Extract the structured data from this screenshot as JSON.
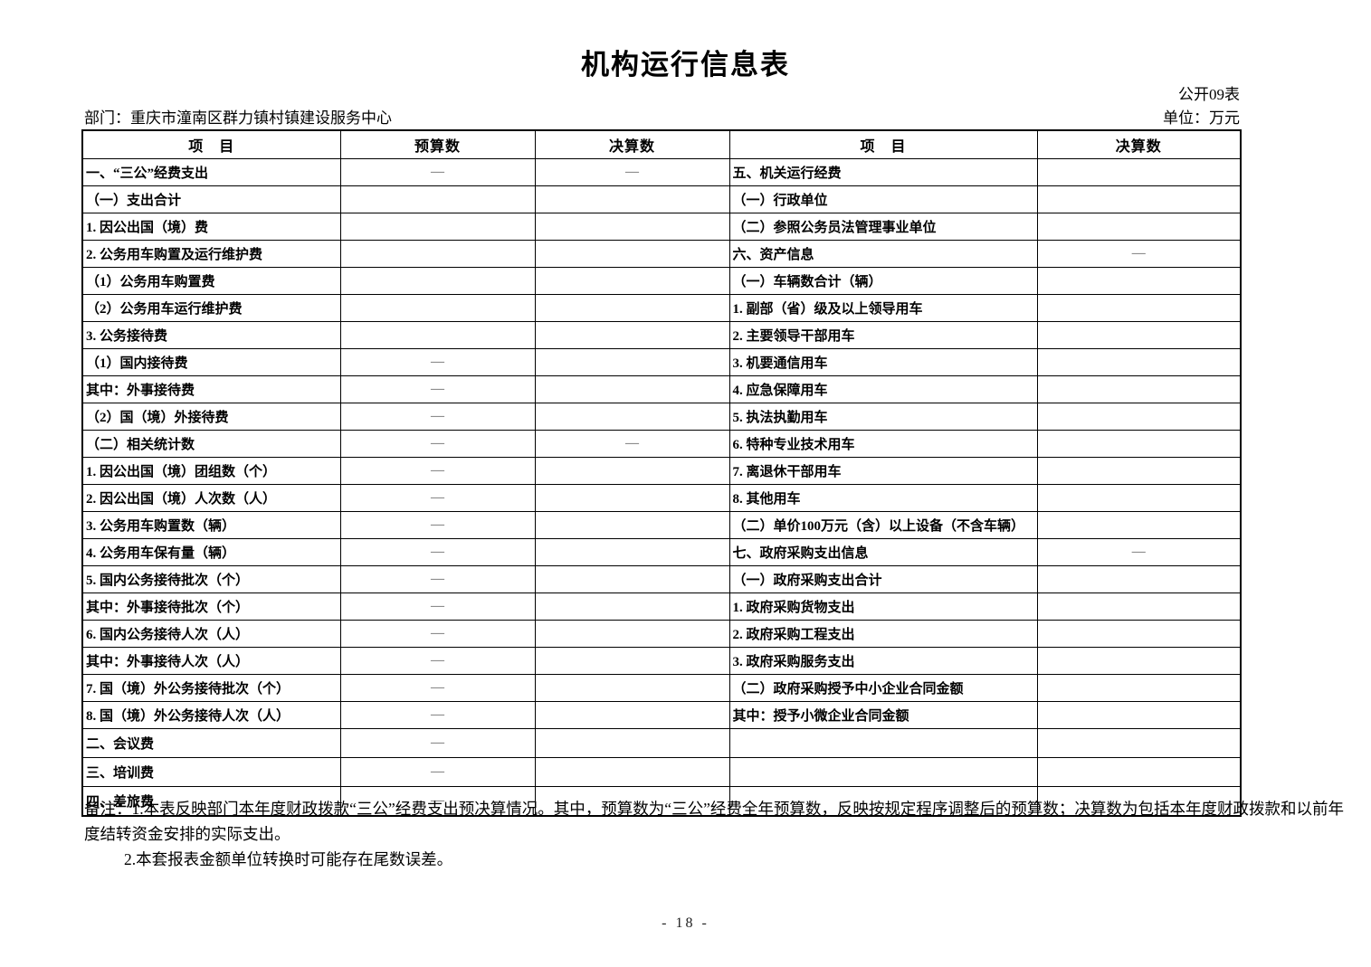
{
  "page": {
    "title": "机构运行信息表",
    "table_code": "公开09表",
    "department": "部门：重庆市潼南区群力镇村镇建设服务中心",
    "unit": "单位：万元",
    "page_number": "- 18 -"
  },
  "colors": {
    "border": "#000000",
    "dash": "#555555",
    "background": "#ffffff"
  },
  "table": {
    "headers": [
      "项　目",
      "预算数",
      "决算数",
      "项　目",
      "决算数"
    ],
    "placeholder_dash": "—",
    "rows": [
      {
        "l": "一、“三公”经费支出",
        "li": 0,
        "b": "—",
        "f": "—",
        "r": "五、机关运行经费",
        "ri": 0,
        "rf": "",
        "tall": false
      },
      {
        "l": "（一）支出合计",
        "li": 1,
        "b": "",
        "f": "",
        "r": "（一）行政单位",
        "ri": 1,
        "rf": "",
        "tall": false
      },
      {
        "l": "1. 因公出国（境）费",
        "li": 2,
        "b": "",
        "f": "",
        "r": "（二）参照公务员法管理事业单位",
        "ri": 1,
        "rf": "",
        "tall": false
      },
      {
        "l": "2. 公务用车购置及运行维护费",
        "li": 2,
        "b": "",
        "f": "",
        "r": "六、资产信息",
        "ri": 0,
        "rf": "—",
        "tall": false
      },
      {
        "l": "（1）公务用车购置费",
        "li": 3,
        "b": "",
        "f": "",
        "r": "（一）车辆数合计（辆）",
        "ri": 1,
        "rf": "",
        "tall": false
      },
      {
        "l": "（2）公务用车运行维护费",
        "li": 3,
        "b": "",
        "f": "",
        "r": "1. 副部（省）级及以上领导用车",
        "ri": 2,
        "rf": "",
        "tall": false
      },
      {
        "l": "3. 公务接待费",
        "li": 2,
        "b": "",
        "f": "",
        "r": "2. 主要领导干部用车",
        "ri": 2,
        "rf": "",
        "tall": false
      },
      {
        "l": "（1）国内接待费",
        "li": 3,
        "b": "—",
        "f": "",
        "r": "3. 机要通信用车",
        "ri": 2,
        "rf": "",
        "tall": false
      },
      {
        "l": "其中：外事接待费",
        "li": 5,
        "b": "—",
        "f": "",
        "r": "4. 应急保障用车",
        "ri": 2,
        "rf": "",
        "tall": false
      },
      {
        "l": "（2）国（境）外接待费",
        "li": 3,
        "b": "—",
        "f": "",
        "r": "5. 执法执勤用车",
        "ri": 2,
        "rf": "",
        "tall": false
      },
      {
        "l": "（二）相关统计数",
        "li": 1,
        "b": "—",
        "f": "—",
        "r": "6. 特种专业技术用车",
        "ri": 2,
        "rf": "",
        "tall": false
      },
      {
        "l": "1. 因公出国（境）团组数（个）",
        "li": 2,
        "b": "—",
        "f": "",
        "r": "7. 离退休干部用车",
        "ri": 2,
        "rf": "",
        "tall": false
      },
      {
        "l": "2. 因公出国（境）人次数（人）",
        "li": 2,
        "b": "—",
        "f": "",
        "r": "8. 其他用车",
        "ri": 2,
        "rf": "",
        "tall": false
      },
      {
        "l": "3. 公务用车购置数（辆）",
        "li": 2,
        "b": "—",
        "f": "",
        "r": "（二）单价100万元（含）以上设备（不含车辆）",
        "ri": 1,
        "rf": "",
        "tall": false
      },
      {
        "l": "4. 公务用车保有量（辆）",
        "li": 2,
        "b": "—",
        "f": "",
        "r": "七、政府采购支出信息",
        "ri": 0,
        "rf": "—",
        "tall": false
      },
      {
        "l": "5. 国内公务接待批次（个）",
        "li": 2,
        "b": "—",
        "f": "",
        "r": "（一）政府采购支出合计",
        "ri": 1,
        "rf": "",
        "tall": false
      },
      {
        "l": "其中：外事接待批次（个）",
        "li": 4,
        "b": "—",
        "f": "",
        "r": "1. 政府采购货物支出",
        "ri": 2,
        "rf": "",
        "tall": false
      },
      {
        "l": "6. 国内公务接待人次（人）",
        "li": 2,
        "b": "—",
        "f": "",
        "r": "2. 政府采购工程支出",
        "ri": 2,
        "rf": "",
        "tall": false
      },
      {
        "l": "其中：外事接待人次（人）",
        "li": 4,
        "b": "—",
        "f": "",
        "r": "3. 政府采购服务支出",
        "ri": 2,
        "rf": "",
        "tall": false
      },
      {
        "l": "7. 国（境）外公务接待批次（个）",
        "li": 2,
        "b": "—",
        "f": "",
        "r": "（二）政府采购授予中小企业合同金额",
        "ri": 1,
        "rf": "",
        "tall": false
      },
      {
        "l": "8. 国（境）外公务接待人次（人）",
        "li": 2,
        "b": "—",
        "f": "",
        "r": "其中：授予小微企业合同金额",
        "ri": 5,
        "rf": "",
        "tall": false
      },
      {
        "l": "二、会议费",
        "li": 0,
        "b": "—",
        "f": "",
        "r": "",
        "ri": 0,
        "rf": "",
        "tall": true
      },
      {
        "l": "三、培训费",
        "li": 0,
        "b": "—",
        "f": "",
        "r": "",
        "ri": 0,
        "rf": "",
        "tall": true
      },
      {
        "l": "四、差旅费",
        "li": 0,
        "b": "—",
        "f": "",
        "r": "",
        "ri": 0,
        "rf": "",
        "tall": true
      }
    ]
  },
  "notes": {
    "note1": "备注：1.本表反映部门本年度财政拨款“三公”经费支出预决算情况。其中，预算数为“三公”经费全年预算数，反映按规定程序调整后的预算数；决算数为包括本年度财政拨款和以前年度结转资金安排的实际支出。",
    "note2": "2.本套报表金额单位转换时可能存在尾数误差。"
  }
}
